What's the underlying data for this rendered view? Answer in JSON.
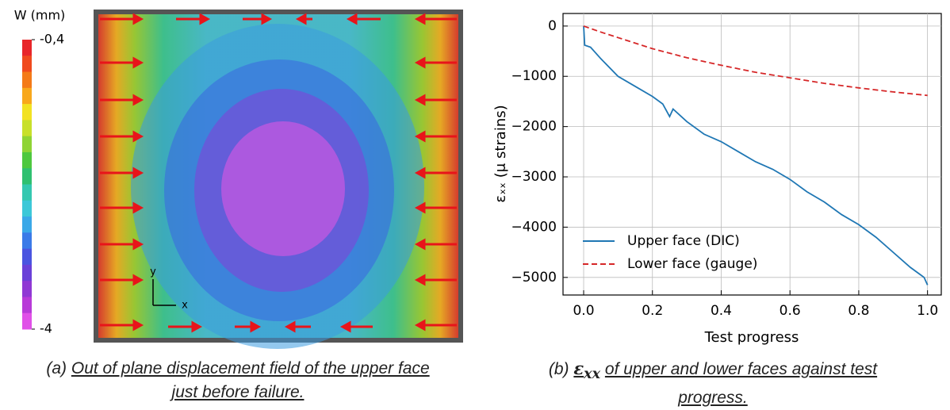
{
  "field": {
    "colorbar_label": "W (mm)",
    "colorbar_ticks": [
      {
        "value": -0.4,
        "label": "-0,4"
      },
      {
        "value": -4,
        "label": "-4"
      }
    ],
    "colorbar_colors": [
      "#e8262a",
      "#f04a1e",
      "#f47a18",
      "#f8a81c",
      "#f2e222",
      "#c8e02a",
      "#8fd434",
      "#4ec83e",
      "#2fc070",
      "#34c8b0",
      "#3cc8d8",
      "#3aa8e8",
      "#3a7ae8",
      "#4a54e0",
      "#6a40d8",
      "#9038d4",
      "#b83ad8",
      "#e050e8"
    ],
    "axis_y": "y",
    "axis_x": "x"
  },
  "caption_a": {
    "label": "(a)",
    "lines": [
      "Out of plane displacement field of the upper face",
      "just before failure."
    ]
  },
  "caption_b": {
    "label": "(b)",
    "symbol": "ε",
    "subscript": "xx",
    "lines": [
      "of upper and lower faces against test",
      "progress."
    ]
  },
  "chart_data": {
    "type": "line",
    "x_label": "Test progress",
    "y_label": "εₓₓ (μ strains)",
    "xlim": [
      -0.06,
      1.04
    ],
    "ylim": [
      -5350,
      250
    ],
    "xticks": [
      {
        "value": 0,
        "label": "0.0"
      },
      0.2,
      0.4,
      0.6,
      0.8,
      {
        "value": 1,
        "label": "1.0"
      }
    ],
    "yticks": [
      0,
      {
        "value": -1000,
        "label": "−1000"
      },
      {
        "value": -2000,
        "label": "−2000"
      },
      {
        "value": -3000,
        "label": "−3000"
      },
      {
        "value": -4000,
        "label": "−4000"
      },
      {
        "value": -5000,
        "label": "−5000"
      }
    ],
    "grid": true,
    "legend": "lower left",
    "series": [
      {
        "name": "Upper face (DIC)",
        "color": "#1f77b4",
        "dash": "solid",
        "x": [
          0,
          0.003,
          0.02,
          0.05,
          0.1,
          0.15,
          0.2,
          0.23,
          0.25,
          0.26,
          0.3,
          0.35,
          0.4,
          0.45,
          0.5,
          0.55,
          0.6,
          0.65,
          0.7,
          0.75,
          0.8,
          0.85,
          0.9,
          0.95,
          0.98,
          0.99,
          1.0
        ],
        "values": [
          0,
          -380,
          -420,
          -650,
          -1000,
          -1200,
          -1400,
          -1550,
          -1800,
          -1650,
          -1900,
          -2150,
          -2300,
          -2500,
          -2700,
          -2850,
          -3050,
          -3300,
          -3500,
          -3750,
          -3950,
          -4200,
          -4500,
          -4800,
          -4950,
          -5000,
          -5150
        ]
      },
      {
        "name": "Lower face (gauge)",
        "color": "#d62728",
        "dash": "dashed",
        "x": [
          0,
          0.05,
          0.1,
          0.2,
          0.3,
          0.4,
          0.5,
          0.6,
          0.7,
          0.8,
          0.9,
          1.0
        ],
        "values": [
          0,
          -120,
          -230,
          -450,
          -630,
          -780,
          -920,
          -1030,
          -1140,
          -1230,
          -1310,
          -1380
        ]
      }
    ]
  }
}
